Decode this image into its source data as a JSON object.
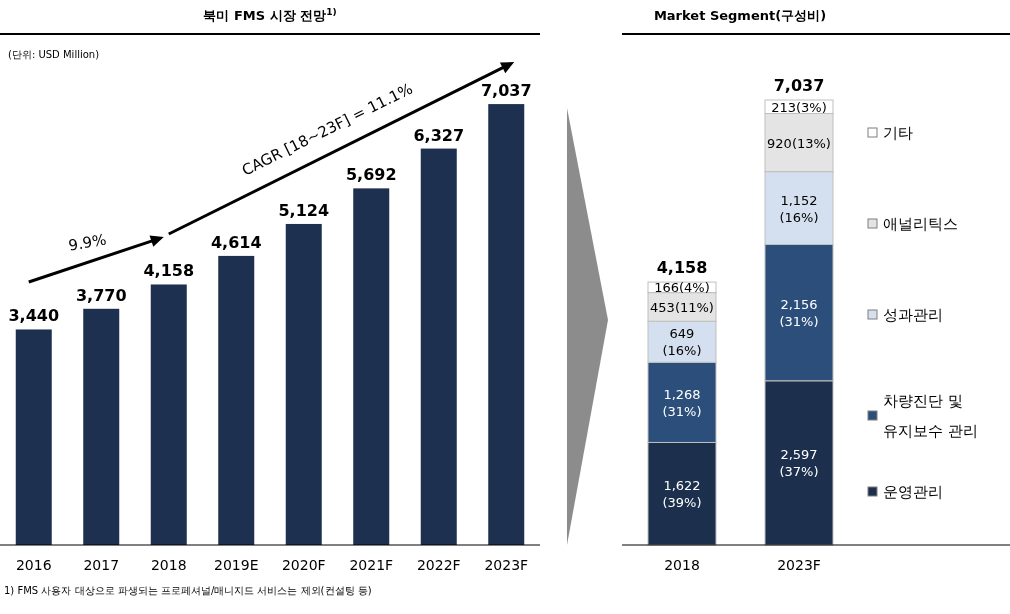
{
  "chart_data": [
    {
      "type": "bar",
      "title": "북미 FMS 시장 전망$^{1)}$",
      "categories": [
        "2016",
        "2017",
        "2018",
        "2019E",
        "2020F",
        "2021F",
        "2022F",
        "2023F"
      ],
      "values": [
        3440,
        3770,
        4158,
        4614,
        5124,
        5692,
        6327,
        7037
      ],
      "color": "#1d3050",
      "value_labels": [
        "3,440",
        "3,770",
        "4,158",
        "4,614",
        "5,124",
        "5,692",
        "6,327",
        "7,037"
      ],
      "annotations": [
        "(단위: USD Million)",
        "9.9%",
        "CAGR [18~23F] = 11.1%",
        "1) FMS 사용자 대상으로 파생되는 프로페셔널/매니지드 서비스는 제외(컨설팅 등)"
      ]
    },
    {
      "type": "bar",
      "title": "Market Segment(구성비)",
      "stacked": true,
      "legend": "right",
      "categories": [
        "2018",
        "2023F"
      ],
      "series": [
        {
          "name": "운영관리",
          "color": "#1c2f4d",
          "values": [
            1622,
            2597
          ],
          "value_labels": [
            "1,622\n(39%)",
            "2,597\n(37%)"
          ]
        },
        {
          "name": "차량진단 및\n유지보수 관리",
          "color": "#2b4e7a",
          "values": [
            1268,
            2156
          ],
          "value_labels": [
            "1,268\n(31%)",
            "2,156\n(31%)"
          ]
        },
        {
          "name": "성과관리",
          "color": "#d4e0ef",
          "values": [
            649,
            1152
          ],
          "value_labels": [
            "649\n(16%)",
            "1,152\n(16%)"
          ]
        },
        {
          "name": "애널리틱스",
          "color": "#e4e4e4",
          "values": [
            453,
            920
          ],
          "value_labels": [
            "453(11%)",
            "920(13%)"
          ]
        },
        {
          "name": "기타",
          "color": "#ffffff",
          "values": [
            166,
            213
          ],
          "value_labels": [
            "166(4%)",
            "213(3%)"
          ]
        }
      ],
      "totals": [
        "4,158",
        "7,037"
      ]
    }
  ]
}
